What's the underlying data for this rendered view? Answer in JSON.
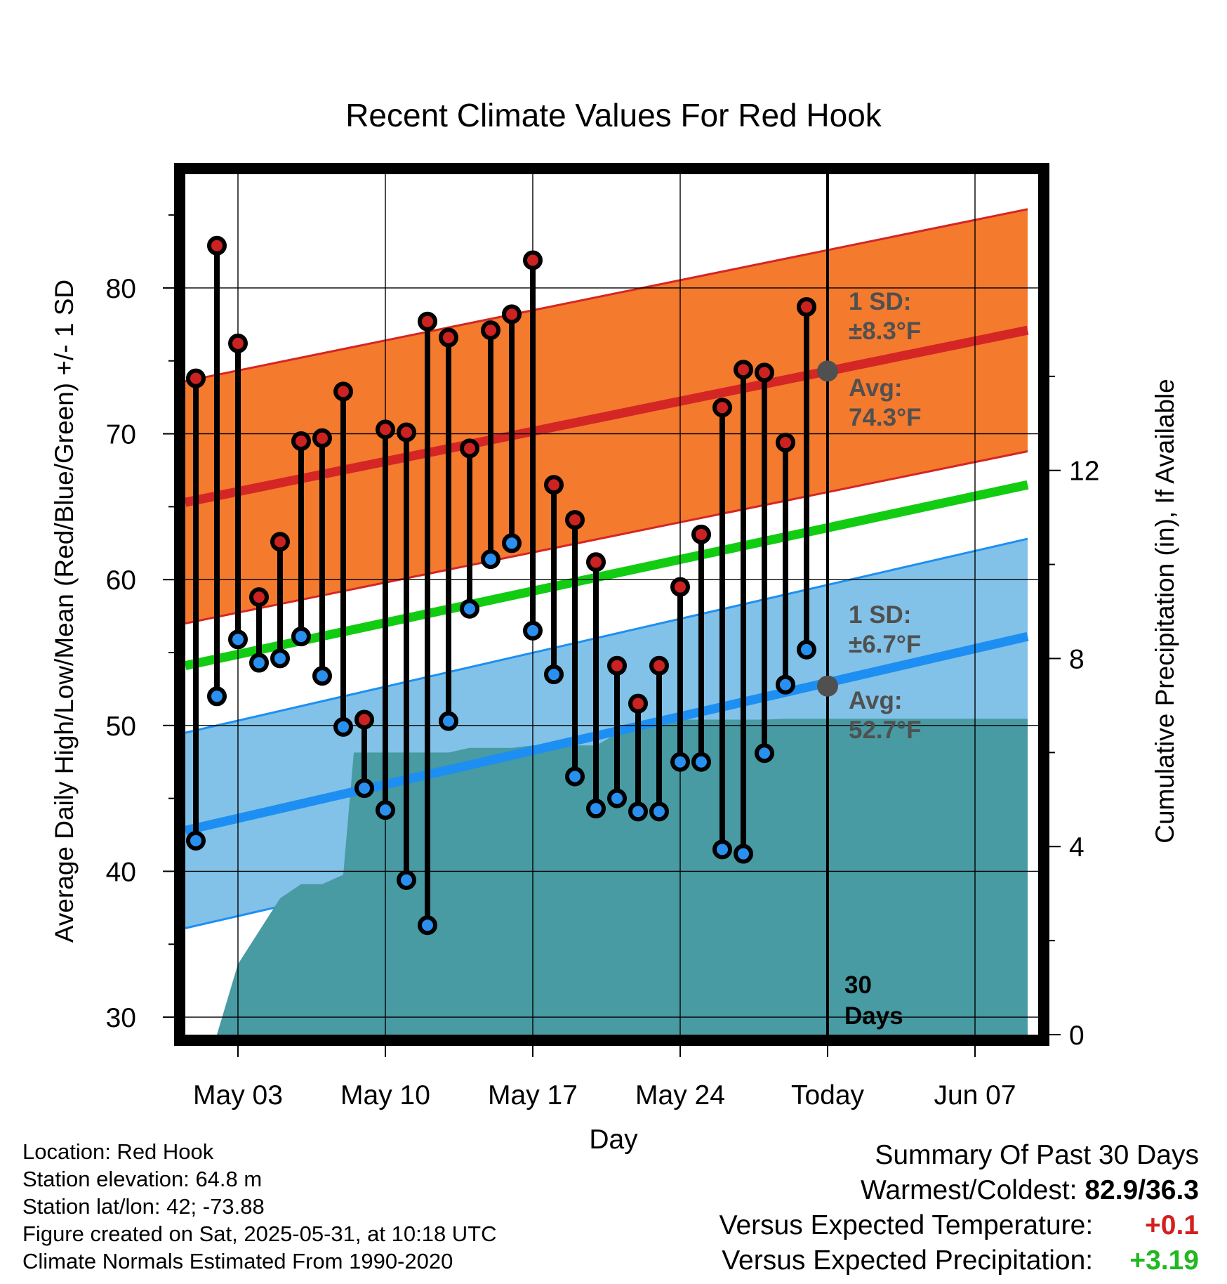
{
  "chart_data": {
    "type": "climate-range",
    "title": "Recent Climate Values For Red Hook",
    "xlabel": "Day",
    "ylabel_left": "Average Daily High/Low/Mean (Red/Blue/Green) +/- 1 SD",
    "ylabel_right": "Cumulative Precipitation (in), If Available",
    "x_day_range": [
      1,
      14.5
    ],
    "x_ticks": [
      {
        "day": 3,
        "label": "May 03"
      },
      {
        "day": 10,
        "label": "May 10"
      },
      {
        "day": 17,
        "label": "May 17"
      },
      {
        "day": 24,
        "label": "May 24"
      },
      {
        "day": 31,
        "label": "Today"
      },
      {
        "day": 38,
        "label": "Jun 07"
      }
    ],
    "y_left_range": [
      28.8,
      87.8
    ],
    "y_left_ticks": [
      30,
      40,
      50,
      60,
      70,
      80
    ],
    "y_right_range": [
      0,
      18.3
    ],
    "y_right_ticks": [
      0,
      4,
      8,
      12
    ],
    "today_day": 31,
    "window_label_line1": "30",
    "window_label_line2": "Days",
    "normals": {
      "days": [
        0.5,
        40.5
      ],
      "high_mean": [
        65.3,
        77.1
      ],
      "high_sd": 8.3,
      "low_mean": [
        42.8,
        56.1
      ],
      "low_sd": 6.7,
      "mean": [
        54.1,
        66.5
      ]
    },
    "annotations": {
      "high_sd_line1": "1 SD:",
      "high_sd_line2": "±8.3°F",
      "high_avg_line1": "Avg:",
      "high_avg_line2": "74.3°F",
      "low_sd_line1": "1 SD:",
      "low_sd_line2": "±6.7°F",
      "low_avg_line1": "Avg:",
      "low_avg_line2": "52.7°F",
      "today_high_avg": 74.3,
      "today_low_avg": 52.7
    },
    "daily": {
      "days": [
        1,
        2,
        3,
        4,
        5,
        6,
        7,
        8,
        9,
        10,
        11,
        12,
        13,
        14,
        15,
        16,
        17,
        18,
        19,
        20,
        21,
        22,
        23,
        24,
        25,
        26,
        27,
        28,
        29,
        30
      ],
      "highs": [
        73.8,
        82.9,
        76.2,
        58.8,
        62.6,
        69.5,
        69.7,
        72.9,
        50.4,
        70.3,
        70.1,
        77.7,
        76.6,
        69.0,
        77.1,
        78.2,
        81.9,
        66.5,
        64.1,
        61.2,
        54.1,
        51.5,
        54.1,
        59.5,
        63.1,
        71.8,
        74.4,
        74.2,
        69.4,
        78.7
      ],
      "lows": [
        42.1,
        52.0,
        55.9,
        54.3,
        54.6,
        56.1,
        53.4,
        49.9,
        45.7,
        44.2,
        39.4,
        36.3,
        50.3,
        58.0,
        61.4,
        62.5,
        56.5,
        53.5,
        46.5,
        44.3,
        45.0,
        44.1,
        44.1,
        47.5,
        47.5,
        41.5,
        41.2,
        48.1,
        52.8,
        55.2
      ]
    },
    "precip_cumulative": {
      "days": [
        0,
        0.2,
        1,
        2,
        3,
        4,
        5,
        6,
        7,
        8,
        8.5,
        9,
        10,
        11,
        12,
        13,
        14,
        15,
        16,
        17,
        18,
        19,
        20,
        21,
        22,
        23,
        24,
        25,
        26,
        27,
        28,
        29,
        30,
        31,
        32,
        40.5
      ],
      "values": [
        0,
        0,
        0,
        0,
        1.5,
        2.2,
        2.9,
        3.2,
        3.2,
        3.4,
        6.0,
        6.0,
        6.0,
        6.0,
        6.0,
        6.0,
        6.1,
        6.1,
        6.1,
        6.15,
        6.15,
        6.15,
        6.15,
        6.4,
        6.5,
        6.6,
        6.7,
        6.7,
        6.7,
        6.7,
        6.7,
        6.72,
        6.72,
        6.72,
        6.72,
        6.72
      ]
    }
  },
  "info": {
    "location": "Location: Red Hook",
    "elevation": "Station elevation: 64.8 m",
    "latlon": "Station lat/lon: 42; -73.88",
    "created": "Figure created on Sat, 2025-05-31, at 10:18 UTC",
    "normals": "Climate Normals Estimated From 1990-2020"
  },
  "summary": {
    "title": "Summary Of Past 30 Days",
    "warm_cold_label": "Warmest/Coldest:",
    "warm_cold_value": "82.9/36.3",
    "temp_label": "Versus Expected Temperature:",
    "temp_value": "+0.1",
    "precip_label": "Versus Expected Precipitation:",
    "precip_value": "+3.19"
  },
  "colors": {
    "high_band": "#f47a2e",
    "high_line": "#d42624",
    "low_band": "#82c2e8",
    "low_line": "#1e8ff2",
    "mean_line": "#12cc12",
    "precip": "#489aa3",
    "high_dot": "#cc2222",
    "low_dot": "#2a90f0",
    "annotation": "#505050"
  }
}
